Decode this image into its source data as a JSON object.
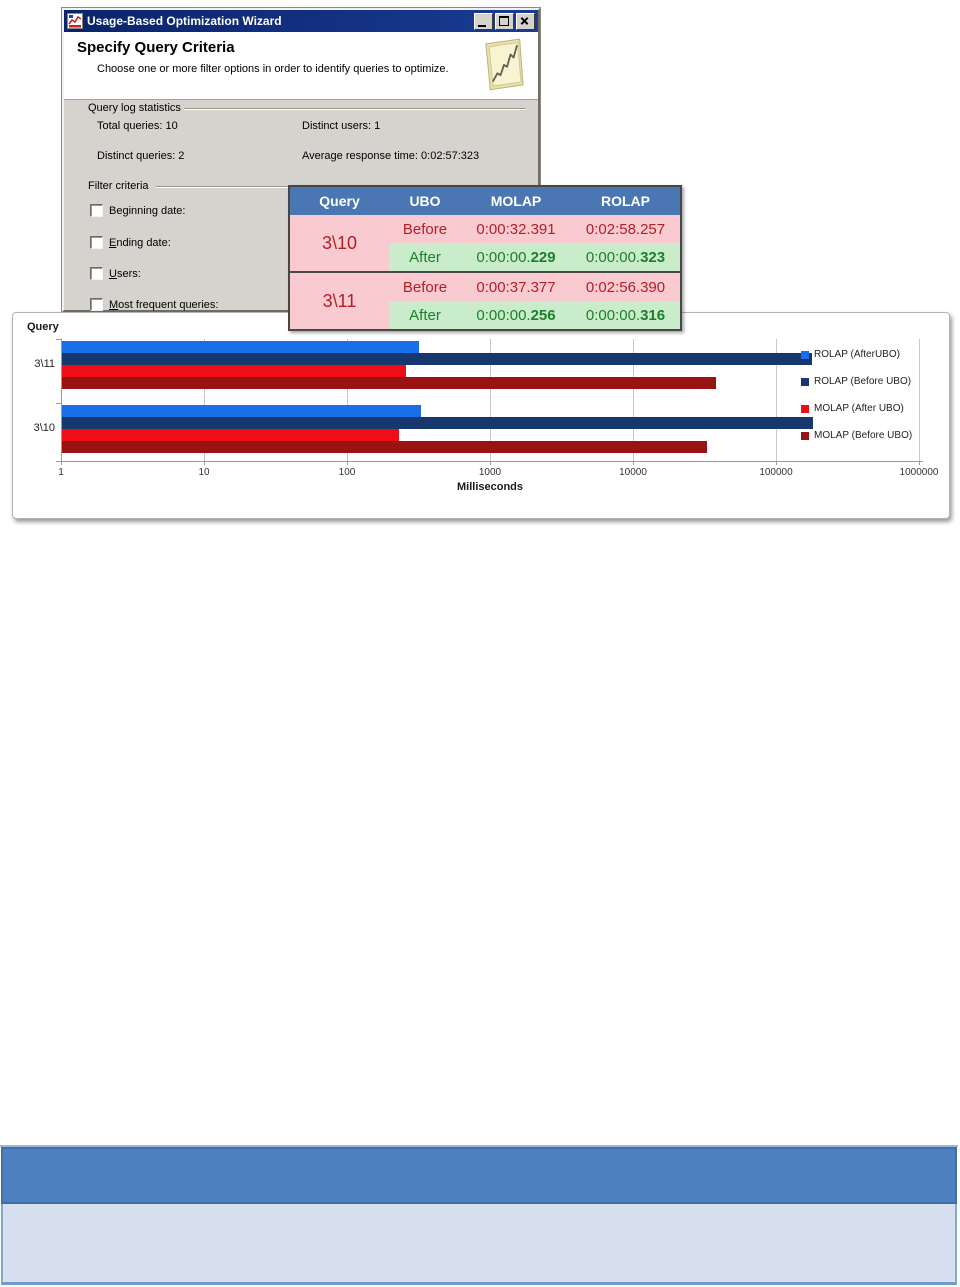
{
  "window": {
    "title": "Usage-Based Optimization Wizard",
    "header": {
      "title": "Specify Query Criteria",
      "subtitle": "Choose one or more filter options in order to identify queries to optimize."
    },
    "stats": {
      "group_label": "Query log statistics",
      "items": [
        "Total queries: 10",
        "Distinct users: 1",
        "Distinct queries: 2",
        "Average response time: 0:02:57:323"
      ]
    },
    "filter": {
      "group_label": "Filter criteria",
      "options": [
        {
          "label": "Beginning date:",
          "underline_index": 2,
          "checked": false
        },
        {
          "label": "Ending date:",
          "underline_index": 0,
          "checked": false
        },
        {
          "label": "Users:",
          "underline_index": 0,
          "checked": false
        },
        {
          "label": "Most frequent queries:",
          "underline_index": 0,
          "checked": false
        }
      ]
    }
  },
  "comparison_table": {
    "headers": [
      "Query",
      "UBO",
      "MOLAP",
      "ROLAP"
    ],
    "header_color": "#4a77b4",
    "before_row_color": "#f9cbd0",
    "after_row_color": "#c9eccb",
    "before_text_color": "#b02028",
    "after_text_color": "#1e7f2a",
    "groups": [
      {
        "query": "3\\10",
        "rows": [
          {
            "type": "before",
            "label": "Before",
            "molap": "0:00:32.391",
            "rolap": "0:02:58.257"
          },
          {
            "type": "after",
            "label": "After",
            "molap": "0:00:00.",
            "molap_bold": "229",
            "rolap": "0:00:00.",
            "rolap_bold": "323"
          }
        ]
      },
      {
        "query": "3\\11",
        "rows": [
          {
            "type": "before",
            "label": "Before",
            "molap": "0:00:37.377",
            "rolap": "0:02:56.390"
          },
          {
            "type": "after",
            "label": "After",
            "molap": "0:00:00.",
            "molap_bold": "256",
            "rolap": "0:00:00.",
            "rolap_bold": "316"
          }
        ]
      }
    ]
  },
  "chart_data": {
    "type": "bar",
    "orientation": "horizontal",
    "x_scale": "log",
    "xlim": [
      1,
      1000000
    ],
    "x_ticks": [
      "1",
      "10",
      "100",
      "1000",
      "10000",
      "100000",
      "1000000"
    ],
    "xlabel": "Milliseconds",
    "ylabel": "Query",
    "grid": true,
    "legend_position": "right",
    "categories": [
      "3\\11",
      "3\\10"
    ],
    "series": [
      {
        "name": "ROLAP (AfterUBO)",
        "color": "#1a6fe8",
        "values": [
          316,
          323
        ]
      },
      {
        "name": "ROLAP (Before UBO)",
        "color": "#16386e",
        "values": [
          176390,
          178257
        ]
      },
      {
        "name": "MOLAP (After UBO)",
        "color": "#ee0e18",
        "values": [
          256,
          229
        ]
      },
      {
        "name": "MOLAP (Before UBO)",
        "color": "#9a1212",
        "values": [
          37377,
          32391
        ]
      }
    ]
  },
  "bottom_table": {
    "header_color": "#4d80be",
    "body_color": "#d5dfee"
  }
}
